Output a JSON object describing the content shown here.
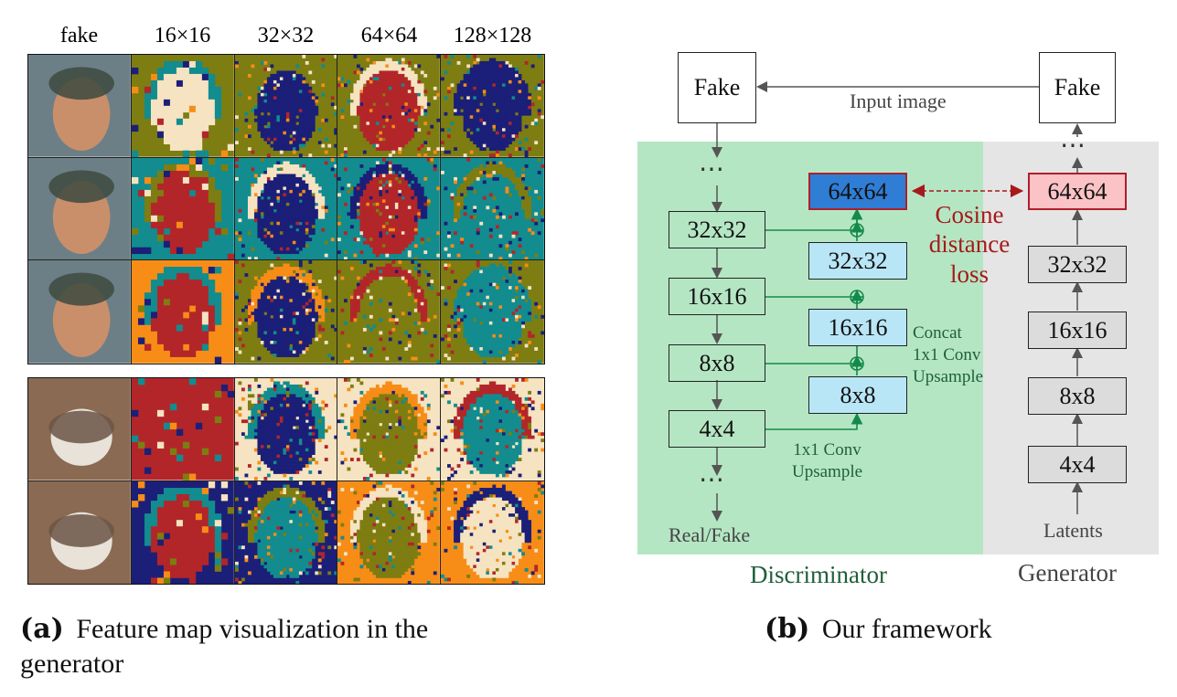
{
  "panel_a": {
    "column_headers": [
      "fake",
      "16×16",
      "32×32",
      "64×64",
      "128×128"
    ],
    "row_groups": [
      "faces",
      "cats"
    ],
    "palette": {
      "cream": "#f5e3c1",
      "teal": "#128c8e",
      "navy": "#1b1f78",
      "orange": "#f78d16",
      "olive": "#7d7d12",
      "red": "#b2262a"
    },
    "caption_bold": "(a)",
    "caption_line1": "Feature map visualization in the",
    "caption_line2": "generator"
  },
  "panel_b": {
    "input_image_label": "Input image",
    "disc_input": "Fake",
    "gen_output": "Fake",
    "ellipsis": "⋯",
    "disc_blocks": [
      "32x32",
      "16x16",
      "8x8",
      "4x4"
    ],
    "disc_output": "Real/Fake",
    "decoder_blocks": [
      "64x64",
      "32x32",
      "16x16",
      "8x8"
    ],
    "gen_blocks": [
      "64x64",
      "32x32",
      "16x16",
      "8x8",
      "4x4"
    ],
    "gen_input": "Latents",
    "loss_line1": "Cosine",
    "loss_line2": "distance",
    "loss_line3": "loss",
    "concat_line1": "Concat",
    "concat_line2": "1x1 Conv",
    "concat_line3": "Upsample",
    "conv_line1": "1x1 Conv",
    "conv_line2": "Upsample",
    "discriminator_label": "Discriminator",
    "generator_label": "Generator",
    "caption_bold": "(b)",
    "caption_text": "Our framework",
    "colors": {
      "disc_bg": "#b5e6c4",
      "gen_bg": "#e5e5e5",
      "decoder_fill": "#b9e6f7",
      "decoder_top": "#2f7dd4",
      "gen_top": "#fcc3c6",
      "gen_fill": "#dcdcdc",
      "loss_red": "#a61a1a",
      "skip_green": "#148a4a"
    }
  }
}
